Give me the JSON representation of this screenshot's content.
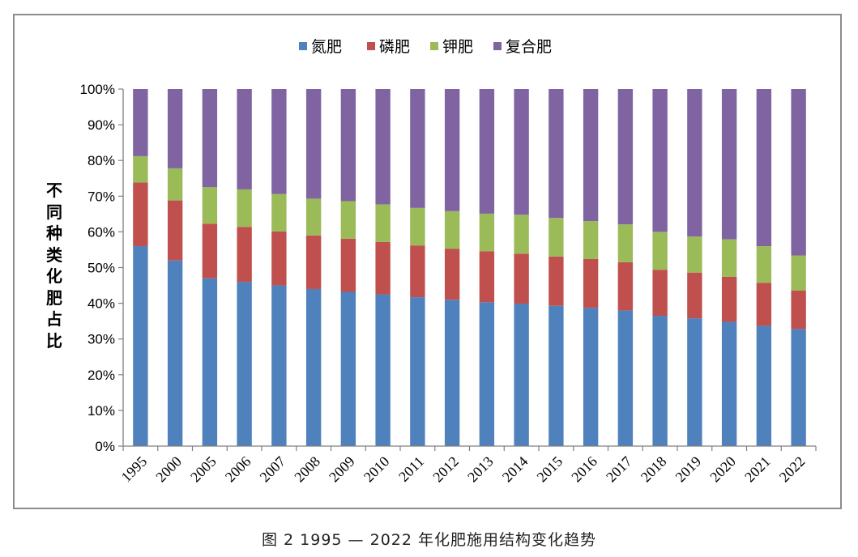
{
  "caption": "图 2 1995 — 2022 年化肥施用结构变化趋势",
  "chart_data": {
    "type": "bar",
    "stacked": true,
    "percent": true,
    "ylabel": "不同种类化肥占比",
    "ylim": [
      0,
      100
    ],
    "yticks": [
      "0%",
      "10%",
      "20%",
      "30%",
      "40%",
      "50%",
      "60%",
      "70%",
      "80%",
      "90%",
      "100%"
    ],
    "legend_position": "top",
    "categories": [
      "1995",
      "2000",
      "2005",
      "2006",
      "2007",
      "2008",
      "2009",
      "2010",
      "2011",
      "2012",
      "2013",
      "2014",
      "2015",
      "2016",
      "2017",
      "2018",
      "2019",
      "2020",
      "2021",
      "2022"
    ],
    "series": [
      {
        "name": "氮肥",
        "color": "#4f81bd",
        "values": [
          56,
          52,
          47,
          46,
          45,
          44,
          43.2,
          42.5,
          41.7,
          41,
          40.3,
          39.9,
          39.3,
          38.7,
          38,
          36.5,
          35.8,
          34.8,
          33.7,
          32.8
        ]
      },
      {
        "name": "磷肥",
        "color": "#c0504d",
        "values": [
          17.8,
          16.8,
          15.3,
          15.4,
          15.1,
          15,
          14.9,
          14.7,
          14.5,
          14.3,
          14.3,
          14,
          13.8,
          13.7,
          13.5,
          12.9,
          12.8,
          12.6,
          12,
          10.8
        ]
      },
      {
        "name": "钾肥",
        "color": "#9bbb59",
        "values": [
          7.4,
          9,
          10.2,
          10.5,
          10.5,
          10.3,
          10.5,
          10.5,
          10.5,
          10.5,
          10.5,
          10.9,
          10.8,
          10.6,
          10.6,
          10.6,
          10.1,
          10.5,
          10.3,
          9.8
        ]
      },
      {
        "name": "复合肥",
        "color": "#8064a2",
        "values": [
          18.8,
          22.2,
          27.5,
          28.1,
          29.4,
          30.7,
          31.4,
          32.3,
          33.3,
          34.2,
          34.9,
          35.2,
          36.1,
          37,
          37.9,
          40,
          41.3,
          42.1,
          44,
          46.6
        ]
      }
    ]
  }
}
